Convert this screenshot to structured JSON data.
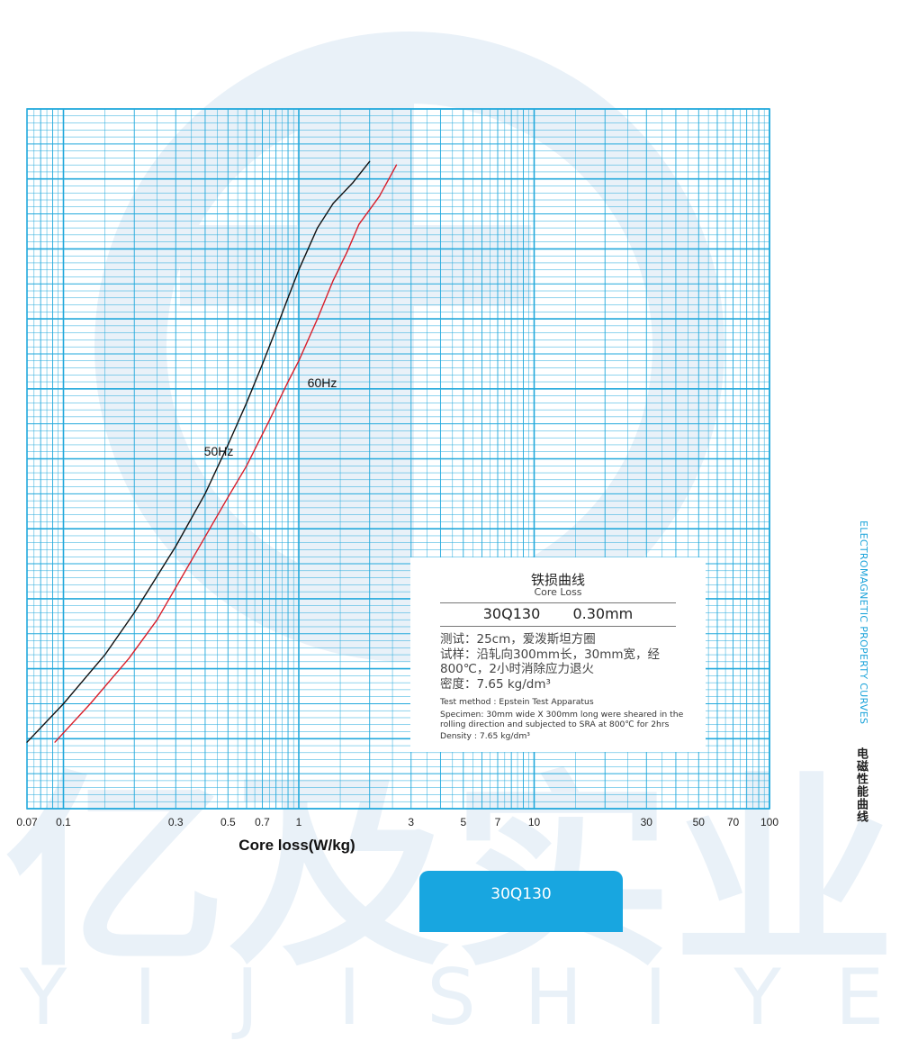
{
  "watermark": {
    "brand_cn": "亿及实业",
    "letters": [
      "Y",
      "I",
      "J",
      "I",
      "S",
      "H",
      "I",
      "Y",
      "E"
    ]
  },
  "chart_data": {
    "type": "line",
    "xlabel": "Core loss(W/kg)",
    "xscale": "log",
    "xlim": [
      0.07,
      100
    ],
    "x_tick_labels": [
      "0.07",
      "0.1",
      "0.3",
      "0.5",
      "0.7",
      "1",
      "3",
      "5",
      "7",
      "10",
      "30",
      "50",
      "70",
      "100"
    ],
    "x_ticks": [
      0.07,
      0.1,
      0.3,
      0.5,
      0.7,
      1,
      3,
      5,
      7,
      10,
      30,
      50,
      70,
      100
    ],
    "grid": true,
    "series": [
      {
        "name": "50Hz",
        "color": "#111111",
        "points": [
          [
            0.07,
            0.19
          ],
          [
            0.1,
            0.3
          ],
          [
            0.15,
            0.44
          ],
          [
            0.2,
            0.56
          ],
          [
            0.3,
            0.75
          ],
          [
            0.4,
            0.9
          ],
          [
            0.5,
            1.04
          ],
          [
            0.6,
            1.16
          ],
          [
            0.7,
            1.27
          ],
          [
            0.8,
            1.37
          ],
          [
            0.9,
            1.46
          ],
          [
            1.0,
            1.54
          ],
          [
            1.2,
            1.66
          ],
          [
            1.4,
            1.73
          ],
          [
            1.7,
            1.79
          ],
          [
            2.0,
            1.85
          ]
        ]
      },
      {
        "name": "60Hz",
        "color": "#d81e2a",
        "points": [
          [
            0.092,
            0.19
          ],
          [
            0.13,
            0.3
          ],
          [
            0.19,
            0.43
          ],
          [
            0.25,
            0.54
          ],
          [
            0.35,
            0.71
          ],
          [
            0.5,
            0.89
          ],
          [
            0.6,
            0.98
          ],
          [
            0.75,
            1.11
          ],
          [
            0.9,
            1.22
          ],
          [
            1.0,
            1.28
          ],
          [
            1.2,
            1.4
          ],
          [
            1.4,
            1.51
          ],
          [
            1.6,
            1.59
          ],
          [
            1.8,
            1.67
          ],
          [
            2.2,
            1.75
          ],
          [
            2.6,
            1.84
          ]
        ]
      }
    ]
  },
  "info": {
    "title_cn": "铁损曲线",
    "title_en": "Core Loss",
    "grade": "30Q130",
    "thickness": "0.30mm",
    "cn_lines": [
      "测试：25cm，爱泼斯坦方圈",
      "试样：沿轧向300mm长，30mm宽，经",
      "           800℃，2小时消除应力退火",
      "密度：7.65 kg/dm³"
    ],
    "en_lines": [
      "Test method : Epstein Test Apparatus",
      "Specimen: 30mm wide X 300mm long were sheared in the",
      "rolling direction and subjected to SRA at 800℃ for 2hrs",
      "Density : 7.65 kg/dm³"
    ]
  },
  "side": {
    "en": "ELECTROMAGNETIC PROPERTY CURVES",
    "cn": "电磁性能曲线"
  },
  "grade_tab": "30Q130",
  "colors": {
    "grid": "#22a9dc",
    "watermark": "#e9f1f8",
    "accent": "#18a6e0"
  }
}
